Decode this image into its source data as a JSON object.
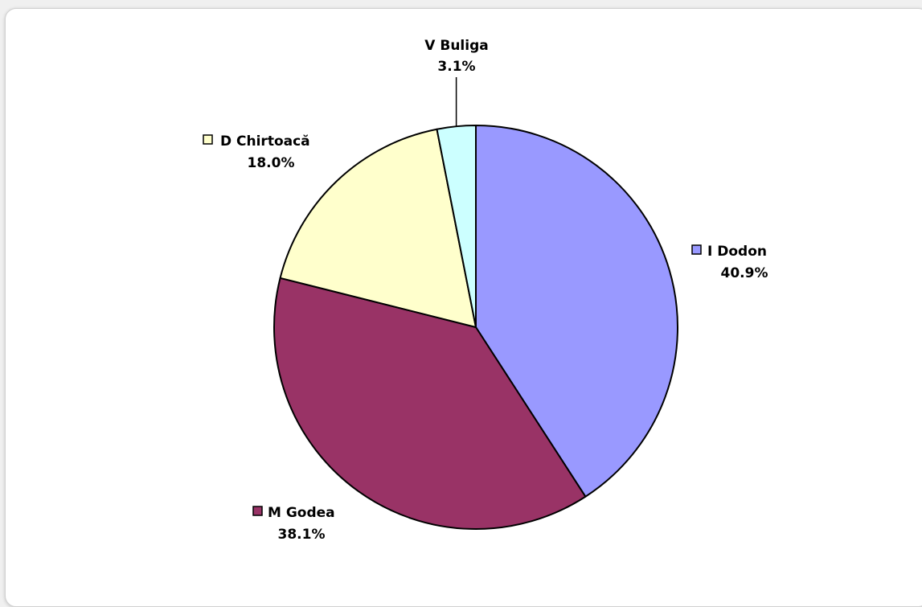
{
  "chart_data": {
    "type": "pie",
    "title": "",
    "start_angle_deg": 0,
    "direction": "clockwise",
    "slices": [
      {
        "label": "I Dodon",
        "value": 40.9,
        "value_label": "40.9%",
        "color": "#9999ff"
      },
      {
        "label": "M Godea",
        "value": 38.1,
        "value_label": "38.1%",
        "color": "#993366"
      },
      {
        "label": "D Chirtoacă",
        "value": 18.0,
        "value_label": "18.0%",
        "color": "#ffffcc"
      },
      {
        "label": "V Buliga",
        "value": 3.1,
        "value_label": "3.1%",
        "color": "#ccffff"
      }
    ],
    "legend_keys_in_labels": true
  }
}
